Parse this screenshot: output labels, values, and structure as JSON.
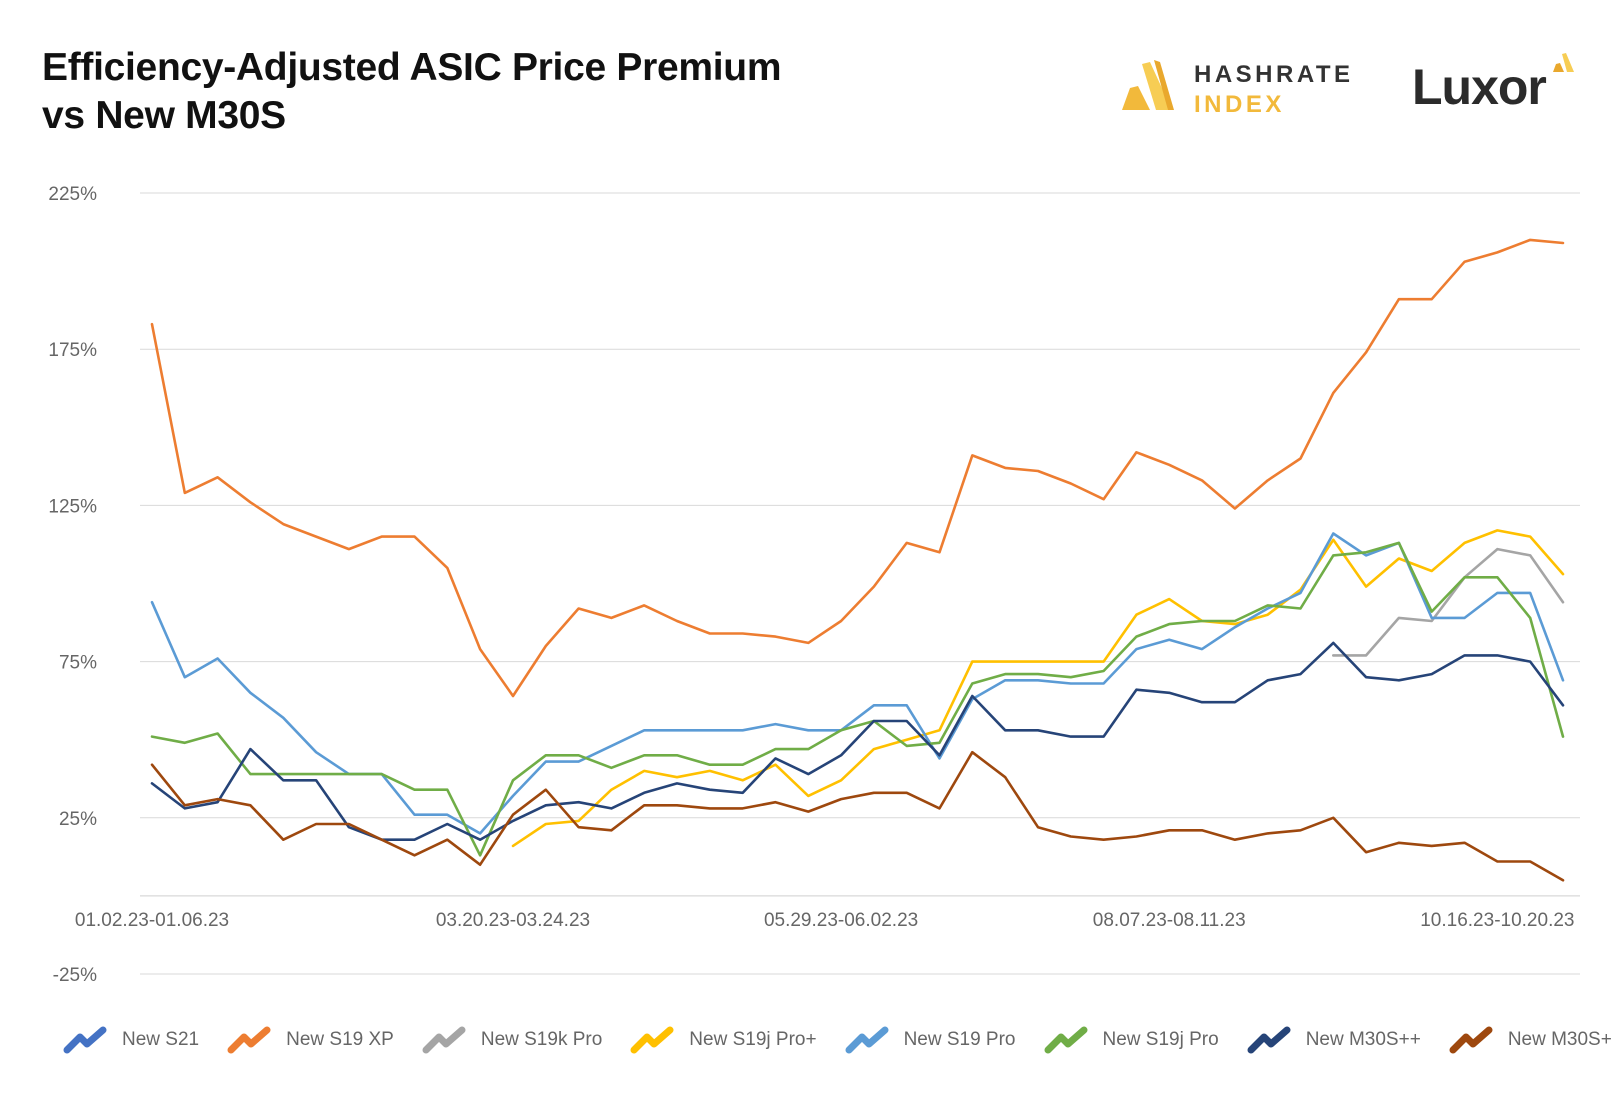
{
  "title_lines": [
    "Efficiency-Adjusted ASIC Price Premium",
    "vs New M30S"
  ],
  "brands": {
    "hashrate_index_top": "HASHRATE",
    "hashrate_index_bottom": "INDEX",
    "luxor": "Luxor"
  },
  "chart_data": {
    "type": "line",
    "title": "Efficiency-Adjusted ASIC Price Premium vs New M30S",
    "xlabel": "",
    "ylabel": "",
    "y_ticks": [
      "225%",
      "175%",
      "125%",
      "75%",
      "25%",
      "-25%"
    ],
    "ylim": [
      -25,
      225
    ],
    "grid": true,
    "legend_position": "bottom",
    "x_tick_labels": [
      {
        "index": 0,
        "label": "01.02.23-01.06.23"
      },
      {
        "index": 11,
        "label": "03.20.23-03.24.23"
      },
      {
        "index": 21,
        "label": "05.29.23-06.02.23"
      },
      {
        "index": 31,
        "label": "08.07.23-08.11.23"
      },
      {
        "index": 41,
        "label": "10.16.23-10.20.23"
      }
    ],
    "n_points": 44,
    "series": [
      {
        "name": "New S21",
        "color": "#4472C4",
        "values": []
      },
      {
        "name": "New S19 XP",
        "color": "#ED7D31",
        "values": [
          183,
          129,
          134,
          126,
          119,
          115,
          111,
          115,
          115,
          105,
          79,
          64,
          80,
          92,
          89,
          93,
          88,
          84,
          84,
          83,
          81,
          88,
          99,
          113,
          110,
          141,
          137,
          136,
          132,
          127,
          142,
          138,
          133,
          124,
          133,
          140,
          161,
          174,
          191,
          191,
          203,
          206,
          210,
          209
        ]
      },
      {
        "name": "New S19k Pro",
        "color": "#A5A5A5",
        "values": [
          null,
          null,
          null,
          null,
          null,
          null,
          null,
          null,
          null,
          null,
          null,
          null,
          null,
          null,
          null,
          null,
          null,
          null,
          null,
          null,
          null,
          null,
          null,
          null,
          null,
          null,
          null,
          null,
          null,
          null,
          null,
          null,
          null,
          null,
          null,
          null,
          77,
          77,
          89,
          88,
          102,
          111,
          109,
          94
        ]
      },
      {
        "name": "New S19j Pro+",
        "color": "#FFC000",
        "values": [
          null,
          null,
          null,
          null,
          null,
          null,
          null,
          null,
          null,
          null,
          null,
          16,
          23,
          24,
          34,
          40,
          38,
          40,
          37,
          42,
          32,
          37,
          47,
          50,
          53,
          75,
          75,
          75,
          75,
          75,
          90,
          95,
          88,
          87,
          90,
          98,
          114,
          99,
          108,
          104,
          113,
          117,
          115,
          103
        ]
      },
      {
        "name": "New S19 Pro",
        "color": "#5B9BD5",
        "values": [
          94,
          70,
          76,
          65,
          57,
          46,
          39,
          39,
          26,
          26,
          20,
          32,
          43,
          43,
          48,
          53,
          53,
          53,
          53,
          55,
          53,
          53,
          61,
          61,
          44,
          63,
          69,
          69,
          68,
          68,
          79,
          82,
          79,
          86,
          92,
          97,
          116,
          109,
          113,
          89,
          89,
          97,
          97,
          69
        ]
      },
      {
        "name": "New S19j Pro",
        "color": "#70AD47",
        "values": [
          51,
          49,
          52,
          39,
          39,
          39,
          39,
          39,
          34,
          34,
          13,
          37,
          45,
          45,
          41,
          45,
          45,
          42,
          42,
          47,
          47,
          53,
          56,
          48,
          49,
          68,
          71,
          71,
          70,
          72,
          83,
          87,
          88,
          88,
          93,
          92,
          109,
          110,
          113,
          91,
          102,
          102,
          89,
          51
        ]
      },
      {
        "name": "New M30S++",
        "color": "#264478",
        "values": [
          36,
          28,
          30,
          47,
          37,
          37,
          22,
          18,
          18,
          23,
          18,
          24,
          29,
          30,
          28,
          33,
          36,
          34,
          33,
          44,
          39,
          45,
          56,
          56,
          45,
          64,
          53,
          53,
          51,
          51,
          66,
          65,
          62,
          62,
          69,
          71,
          81,
          70,
          69,
          71,
          77,
          77,
          75,
          61
        ]
      },
      {
        "name": "New M30S+",
        "color": "#9E480E",
        "values": [
          42,
          29,
          31,
          29,
          18,
          23,
          23,
          18,
          13,
          18,
          10,
          26,
          34,
          22,
          21,
          29,
          29,
          28,
          28,
          30,
          27,
          31,
          33,
          33,
          28,
          46,
          38,
          22,
          19,
          18,
          19,
          21,
          21,
          18,
          20,
          21,
          25,
          14,
          17,
          16,
          17,
          11,
          11,
          5
        ]
      }
    ]
  }
}
